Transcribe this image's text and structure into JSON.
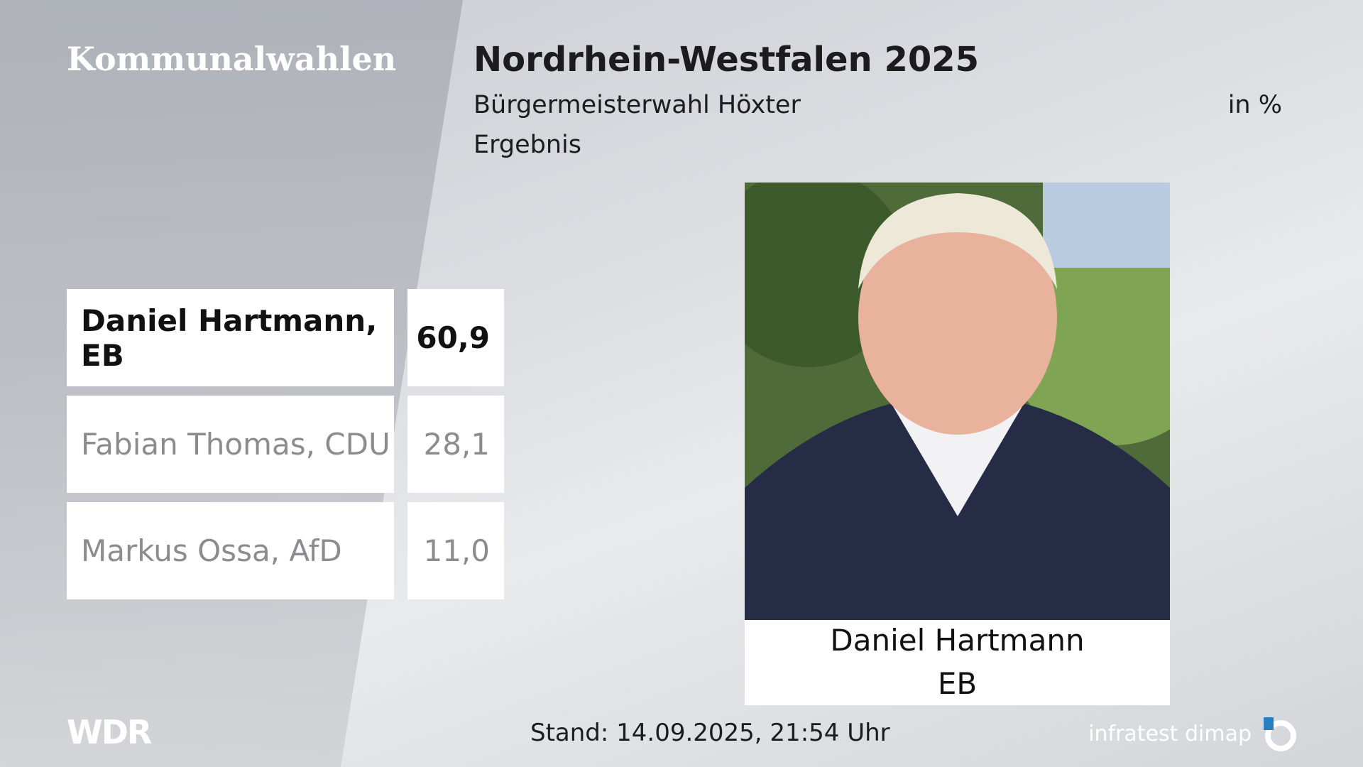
{
  "header": {
    "brand": "Kommunalwahlen",
    "title": "Nordrhein-Westfalen 2025",
    "subtitle": "Bürgermeisterwahl Höxter",
    "unit": "in %",
    "label": "Ergebnis"
  },
  "table": {
    "rows": [
      [
        "Daniel Hartmann, EB",
        "60,9"
      ],
      [
        "Fabian Thomas, CDU",
        "28,1"
      ],
      [
        "Markus Ossa, AfD",
        "11,0"
      ]
    ]
  },
  "photo": {
    "name": "Daniel Hartmann",
    "party": "EB"
  },
  "footer": {
    "logo": "WDR",
    "status": "Stand: 14.09.2025, 21:54 Uhr",
    "source": "infratest dimap"
  }
}
